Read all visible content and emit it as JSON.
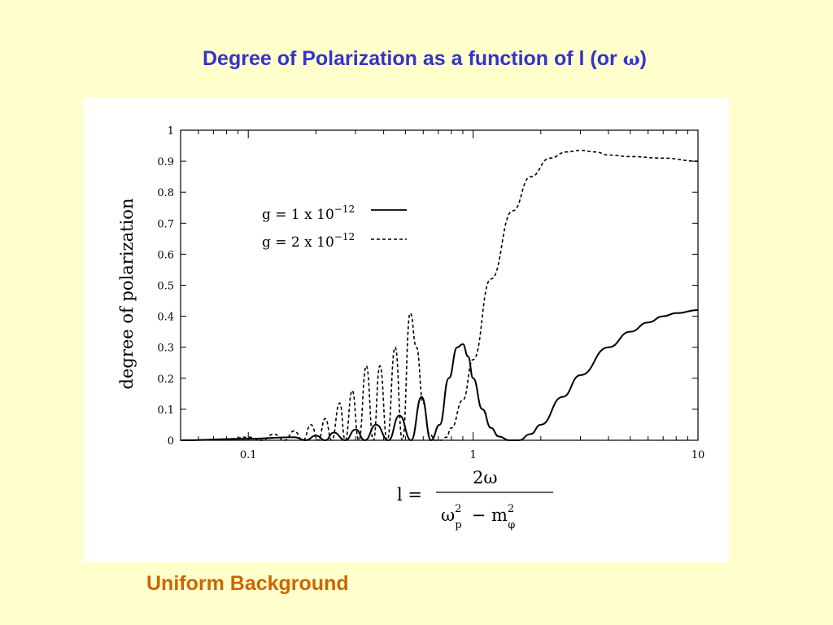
{
  "slide": {
    "title_text": "Degree of Polarization as a function of l (or ",
    "title_symbol": "ω",
    "title_close": ")",
    "caption": "Uniform Background"
  },
  "colors": {
    "background": "#FFFFCC",
    "title": "#3333CC",
    "caption": "#CC6600",
    "panel": "#FFFFFF",
    "ink": "#000000"
  },
  "chart_data": {
    "type": "line",
    "ylabel": "degree of polarization",
    "xscale": "log",
    "xlim": [
      0.05,
      10
    ],
    "ylim": [
      0,
      1
    ],
    "x_ticks": [
      {
        "value": 0.1,
        "label": "0.1"
      },
      {
        "value": 1,
        "label": "1"
      },
      {
        "value": 10,
        "label": "10"
      }
    ],
    "y_ticks": [
      {
        "value": 0,
        "label": "0"
      },
      {
        "value": 0.1,
        "label": "0.1"
      },
      {
        "value": 0.2,
        "label": "0.2"
      },
      {
        "value": 0.3,
        "label": "0.3"
      },
      {
        "value": 0.4,
        "label": "0.4"
      },
      {
        "value": 0.5,
        "label": "0.5"
      },
      {
        "value": 0.6,
        "label": "0.6"
      },
      {
        "value": 0.7,
        "label": "0.7"
      },
      {
        "value": 0.8,
        "label": "0.8"
      },
      {
        "value": 0.9,
        "label": "0.9"
      },
      {
        "value": 1,
        "label": "1"
      }
    ],
    "series": [
      {
        "name": "g = 1 x 10^-12",
        "legend_prefix": "g = 1 x 10",
        "legend_exp": "−12",
        "style": "solid",
        "x": [
          0.05,
          0.1,
          0.16,
          0.18,
          0.2,
          0.22,
          0.24,
          0.27,
          0.3,
          0.33,
          0.37,
          0.42,
          0.47,
          0.53,
          0.59,
          0.65,
          0.71,
          0.78,
          0.85,
          0.9,
          0.95,
          1.0,
          1.1,
          1.2,
          1.3,
          1.45,
          1.6,
          1.8,
          2.0,
          2.5,
          3.0,
          4.0,
          5.0,
          6.0,
          7.0,
          8.0,
          10.0
        ],
        "y": [
          0.0,
          0.005,
          0.01,
          0.0,
          0.015,
          0.0,
          0.025,
          0.0,
          0.035,
          0.0,
          0.05,
          0.0,
          0.08,
          0.0,
          0.14,
          0.0,
          0.05,
          0.2,
          0.3,
          0.31,
          0.27,
          0.2,
          0.1,
          0.04,
          0.012,
          0.0,
          0.0,
          0.02,
          0.05,
          0.14,
          0.21,
          0.3,
          0.35,
          0.38,
          0.4,
          0.41,
          0.42
        ]
      },
      {
        "name": "g = 2 x 10^-12",
        "legend_prefix": "g = 2 x 10",
        "legend_exp": "−12",
        "style": "dashed",
        "x": [
          0.05,
          0.08,
          0.1,
          0.115,
          0.13,
          0.145,
          0.16,
          0.175,
          0.19,
          0.205,
          0.22,
          0.235,
          0.255,
          0.27,
          0.29,
          0.31,
          0.335,
          0.36,
          0.385,
          0.415,
          0.45,
          0.485,
          0.525,
          0.56,
          0.6,
          0.64,
          0.68,
          0.72,
          0.76,
          0.8,
          0.9,
          1.0,
          1.2,
          1.5,
          1.8,
          2.2,
          2.6,
          3.0,
          3.5,
          4.0,
          5.0,
          7.0,
          10.0
        ],
        "y": [
          0.0,
          0.003,
          0.01,
          0.0,
          0.02,
          0.0,
          0.03,
          0.0,
          0.05,
          0.0,
          0.07,
          0.0,
          0.12,
          0.0,
          0.16,
          0.0,
          0.24,
          0.0,
          0.24,
          0.0,
          0.3,
          0.0,
          0.41,
          0.3,
          0.12,
          0.02,
          0.0,
          0.0,
          0.01,
          0.04,
          0.13,
          0.26,
          0.52,
          0.74,
          0.85,
          0.91,
          0.93,
          0.935,
          0.93,
          0.92,
          0.915,
          0.91,
          0.9
        ]
      }
    ]
  },
  "formula": {
    "lhs": "l =",
    "numerator": "2ω",
    "term1_base": "ω",
    "term1_sup": "2",
    "term1_sub": "p",
    "minus": "− m",
    "term2_sup": "2",
    "term2_sub": "φ"
  }
}
